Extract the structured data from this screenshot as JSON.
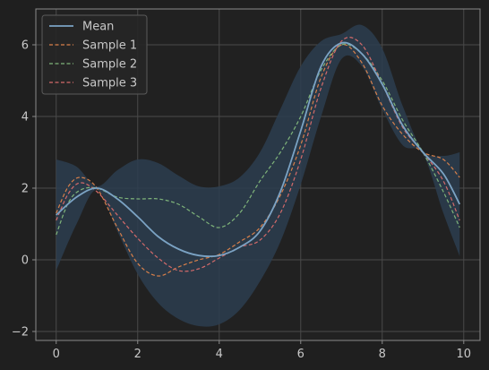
{
  "chart_data": {
    "type": "line",
    "title": "",
    "xlabel": "",
    "ylabel": "",
    "xlim": [
      -0.5,
      10.4
    ],
    "ylim": [
      -2.25,
      7.0
    ],
    "xticks": [
      0,
      2,
      4,
      6,
      8,
      10
    ],
    "yticks": [
      -2,
      0,
      2,
      4,
      6
    ],
    "grid": true,
    "legend": "top-left",
    "band": {
      "x": [
        0,
        0.5,
        1,
        1.5,
        2,
        2.5,
        3,
        3.5,
        4,
        4.5,
        5,
        5.5,
        6,
        6.5,
        7,
        7.5,
        8,
        8.5,
        9,
        9.5,
        9.9
      ],
      "lower": [
        -0.3,
        1.0,
        1.95,
        0.8,
        -0.4,
        -1.2,
        -1.65,
        -1.85,
        -1.8,
        -1.4,
        -0.6,
        0.5,
        2.1,
        4.0,
        5.6,
        5.4,
        4.2,
        3.2,
        2.95,
        1.3,
        0.1
      ],
      "upper": [
        2.8,
        2.6,
        2.05,
        2.5,
        2.8,
        2.7,
        2.35,
        2.05,
        2.05,
        2.3,
        3.0,
        4.2,
        5.4,
        6.1,
        6.3,
        6.55,
        5.9,
        4.3,
        3.05,
        2.9,
        3.0
      ],
      "color": "#2b3d4f"
    },
    "series": [
      {
        "name": "Mean",
        "style": "solid",
        "color": "#7ba3c4",
        "x": [
          0,
          0.5,
          1,
          1.5,
          2,
          2.5,
          3,
          3.5,
          4,
          4.5,
          5,
          5.5,
          6,
          6.5,
          7,
          7.5,
          8,
          8.5,
          9,
          9.5,
          9.9
        ],
        "y": [
          1.25,
          1.75,
          2.0,
          1.7,
          1.2,
          0.65,
          0.3,
          0.12,
          0.12,
          0.35,
          0.8,
          1.9,
          3.6,
          5.4,
          6.05,
          5.75,
          4.9,
          3.75,
          3.0,
          2.4,
          1.55
        ]
      },
      {
        "name": "Sample 1",
        "style": "dashed",
        "color": "#d9804a",
        "x": [
          0,
          0.3,
          0.6,
          1,
          1.5,
          2,
          2.5,
          3,
          3.5,
          4,
          4.5,
          5,
          5.5,
          6,
          6.5,
          7,
          7.5,
          8,
          8.5,
          9,
          9.5,
          9.9
        ],
        "y": [
          1.3,
          2.05,
          2.3,
          2.0,
          0.9,
          -0.1,
          -0.45,
          -0.2,
          0.0,
          0.15,
          0.5,
          0.9,
          1.8,
          3.2,
          5.1,
          6.0,
          5.5,
          4.3,
          3.5,
          3.0,
          2.8,
          2.3
        ]
      },
      {
        "name": "Sample 2",
        "style": "dashed",
        "color": "#7fb47a",
        "x": [
          0,
          0.3,
          0.6,
          1,
          1.5,
          2,
          2.5,
          3,
          3.5,
          4,
          4.5,
          5,
          5.5,
          6,
          6.5,
          7,
          7.5,
          8,
          8.5,
          9,
          9.5,
          9.9
        ],
        "y": [
          0.7,
          1.6,
          1.95,
          2.0,
          1.75,
          1.7,
          1.7,
          1.55,
          1.2,
          0.9,
          1.3,
          2.2,
          3.0,
          4.0,
          5.3,
          6.0,
          5.75,
          5.0,
          3.9,
          3.0,
          1.9,
          0.9
        ]
      },
      {
        "name": "Sample 3",
        "style": "dashed",
        "color": "#d36a6a",
        "x": [
          0,
          0.3,
          0.6,
          1,
          1.5,
          2,
          2.5,
          3,
          3.5,
          4,
          4.5,
          5,
          5.5,
          6,
          6.5,
          7,
          7.5,
          8,
          8.5,
          9,
          9.5,
          9.9
        ],
        "y": [
          1.1,
          1.85,
          2.15,
          1.9,
          1.25,
          0.6,
          0.05,
          -0.3,
          -0.25,
          0.05,
          0.35,
          0.55,
          1.3,
          2.8,
          4.8,
          6.1,
          6.0,
          4.9,
          3.7,
          3.0,
          2.2,
          1.1
        ]
      }
    ]
  }
}
